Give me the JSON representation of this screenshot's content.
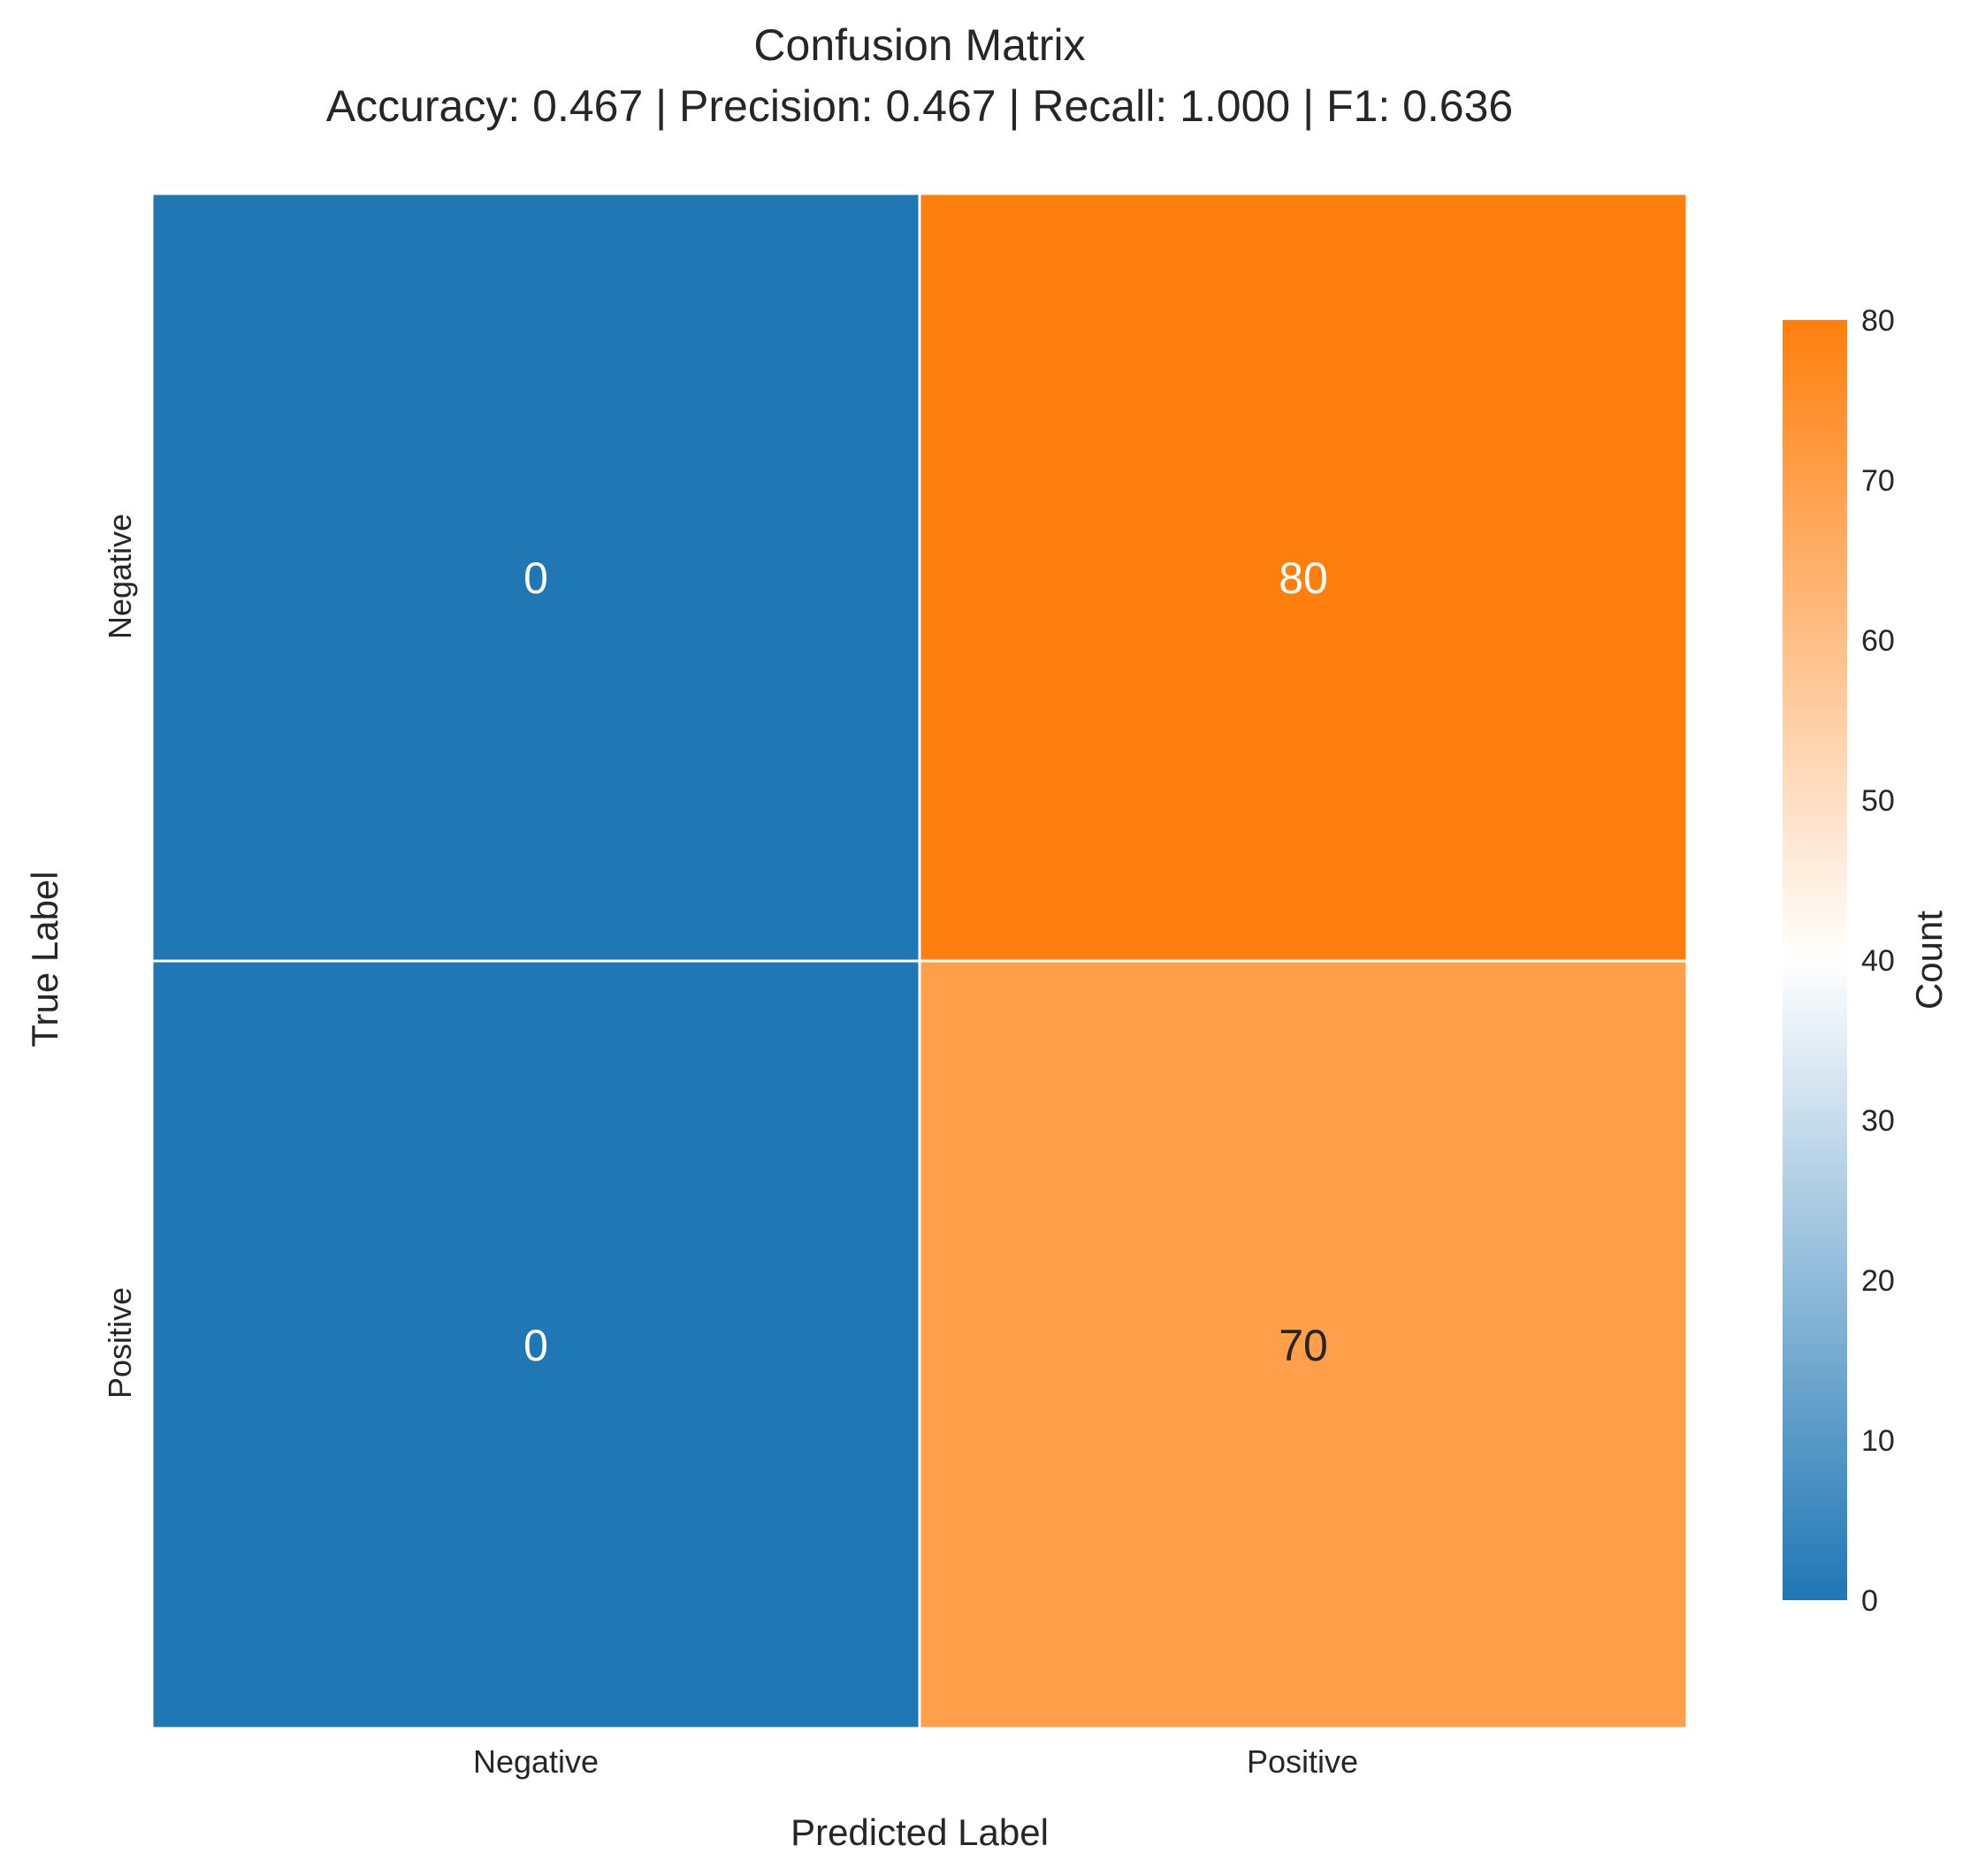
{
  "chart_data": {
    "type": "heatmap",
    "title": "Confusion Matrix",
    "subtitle": "Accuracy: 0.467 | Precision: 0.467 | Recall: 1.000 | F1: 0.636",
    "xlabel": "Predicted Label",
    "ylabel": "True Label",
    "x_categories": [
      "Negative",
      "Positive"
    ],
    "y_categories": [
      "Negative",
      "Positive"
    ],
    "values": [
      [
        0,
        80
      ],
      [
        0,
        70
      ]
    ],
    "value_labels": [
      [
        "0",
        "80"
      ],
      [
        "0",
        "70"
      ]
    ],
    "colorbar": {
      "label": "Count",
      "range": [
        0,
        80
      ],
      "ticks": [
        "0",
        "10",
        "20",
        "30",
        "40",
        "50",
        "60",
        "70",
        "80"
      ],
      "colors": [
        "#1f77b4",
        "#ffffff",
        "#ff7f0e"
      ]
    },
    "annotation_colors": {
      "light": "#ffffff",
      "dark": "#262626"
    }
  }
}
